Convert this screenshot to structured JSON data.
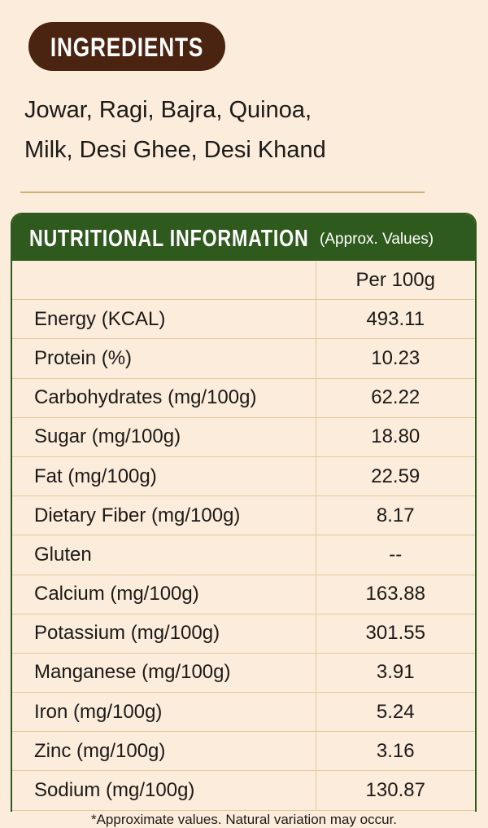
{
  "ingredients": {
    "title": "INGREDIENTS",
    "lines": [
      "Jowar, Ragi, Bajra, Quinoa,",
      "Milk, Desi Ghee, Desi Khand"
    ]
  },
  "nutrition": {
    "title": "NUTRITIONAL INFORMATION",
    "subtitle": "(Approx. Values)",
    "column_header": "Per 100g",
    "rows": [
      [
        "Energy (KCAL)",
        "493.11"
      ],
      [
        "Protein (%)",
        "10.23"
      ],
      [
        "Carbohydrates (mg/100g)",
        "62.22"
      ],
      [
        "Sugar (mg/100g)",
        "18.80"
      ],
      [
        "Fat  (mg/100g)",
        "22.59"
      ],
      [
        "Dietary Fiber (mg/100g)",
        "8.17"
      ],
      [
        "Gluten",
        "--"
      ],
      [
        "Calcium (mg/100g)",
        "163.88"
      ],
      [
        "Potassium (mg/100g)",
        "301.55"
      ],
      [
        "Manganese (mg/100g)",
        "3.91"
      ],
      [
        "Iron (mg/100g)",
        "5.24"
      ],
      [
        "Zinc (mg/100g)",
        "3.16"
      ],
      [
        "Sodium (mg/100g)",
        "130.87"
      ]
    ]
  },
  "footnote": "*Approximate values. Natural variation may occur."
}
